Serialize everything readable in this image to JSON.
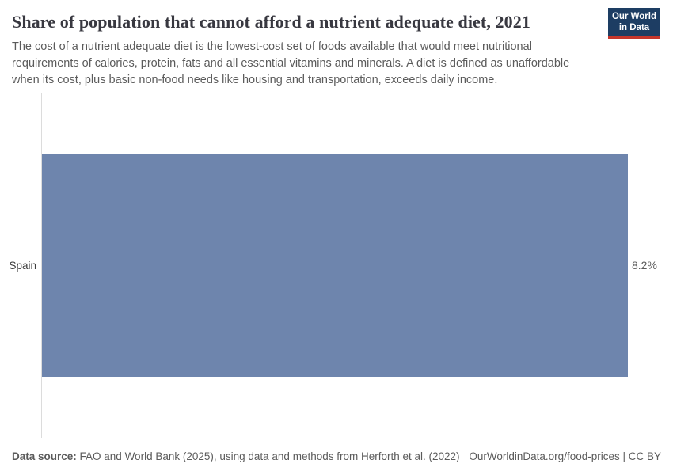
{
  "header": {
    "title": "Share of population that cannot afford a nutrient adequate diet, 2021",
    "subtitle": "The cost of a nutrient adequate diet is the lowest-cost set of foods available that would meet nutritional requirements of calories, protein, fats and all essential vitamins and minerals. A diet is defined as unaffordable when its cost, plus basic non-food needs like housing and transportation, exceeds daily income."
  },
  "logo": {
    "line1": "Our World",
    "line2": "in Data",
    "background_color": "#1d3d63",
    "underline_color": "#c5362c"
  },
  "chart_data": {
    "type": "bar",
    "orientation": "horizontal",
    "title": "Share of population that cannot afford a nutrient adequate diet, 2021",
    "categories": [
      "Spain"
    ],
    "values": [
      8.2
    ],
    "value_labels": [
      "8.2%"
    ],
    "xlabel": "",
    "ylabel": "",
    "xlim": [
      0,
      8.2
    ],
    "grid": false,
    "legend": false,
    "bar_color": "#6e85ad",
    "axis_line_color": "#dcdcdc"
  },
  "footer": {
    "datasource_label": "Data source:",
    "datasource_text": " FAO and World Bank (2025), using data and methods from Herforth et al. (2022)",
    "right_text": "OurWorldinData.org/food-prices | CC BY"
  }
}
